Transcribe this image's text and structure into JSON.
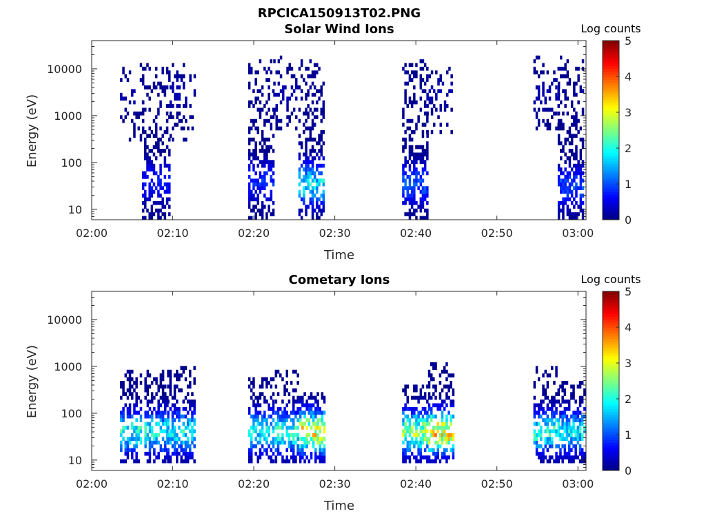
{
  "figure_title": "RPCICA150913T02.PNG",
  "colors": {
    "background": "#ffffff",
    "axis": "#262626",
    "frame": "#262626"
  },
  "chart_data": [
    {
      "type": "heatmap",
      "title": "Solar Wind Ions",
      "xlabel": "Time",
      "ylabel": "Energy (eV)",
      "x_ticks": [
        "02:00",
        "02:10",
        "02:20",
        "02:30",
        "02:40",
        "02:50",
        "03:00"
      ],
      "y_ticks": [
        "10",
        "100",
        "1000",
        "10000"
      ],
      "y_scale": "log",
      "xlim_minutes": [
        0,
        61
      ],
      "ylim_eV": [
        6,
        40000
      ],
      "colorbar": {
        "label": "Log counts",
        "ticks": [
          "0",
          "1",
          "2",
          "3",
          "4",
          "5"
        ],
        "range": [
          0,
          5
        ],
        "colormap": "jet"
      },
      "series": [
        {
          "t_start": 3.5,
          "t_end": 6.2,
          "e_min": 300,
          "e_max": 14000,
          "peak_log_counts": 0.3,
          "core_e": 3000,
          "density": 0.25
        },
        {
          "t_start": 6.2,
          "t_end": 9.6,
          "e_min": 6,
          "e_max": 14000,
          "peak_log_counts": 0.9,
          "core_e": 40,
          "density": 0.55
        },
        {
          "t_start": 9.6,
          "t_end": 12.8,
          "e_min": 300,
          "e_max": 14000,
          "peak_log_counts": 0.3,
          "core_e": 3000,
          "density": 0.25
        },
        {
          "t_start": 19.3,
          "t_end": 22.4,
          "e_min": 6,
          "e_max": 16000,
          "peak_log_counts": 1.0,
          "core_e": 40,
          "density": 0.6
        },
        {
          "t_start": 22.4,
          "t_end": 25.5,
          "e_min": 500,
          "e_max": 18000,
          "peak_log_counts": 0.3,
          "core_e": 3000,
          "density": 0.3
        },
        {
          "t_start": 25.5,
          "t_end": 28.7,
          "e_min": 6,
          "e_max": 16000,
          "peak_log_counts": 2.2,
          "core_e": 35,
          "density": 0.6
        },
        {
          "t_start": 38.3,
          "t_end": 41.3,
          "e_min": 6,
          "e_max": 16000,
          "peak_log_counts": 1.3,
          "core_e": 35,
          "density": 0.6
        },
        {
          "t_start": 41.3,
          "t_end": 44.5,
          "e_min": 300,
          "e_max": 12000,
          "peak_log_counts": 0.3,
          "core_e": 3000,
          "density": 0.25
        },
        {
          "t_start": 54.5,
          "t_end": 57.5,
          "e_min": 500,
          "e_max": 18000,
          "peak_log_counts": 0.3,
          "core_e": 3000,
          "density": 0.3
        },
        {
          "t_start": 57.5,
          "t_end": 60.7,
          "e_min": 6,
          "e_max": 18000,
          "peak_log_counts": 1.2,
          "core_e": 30,
          "density": 0.6
        }
      ]
    },
    {
      "type": "heatmap",
      "title": "Cometary Ions",
      "xlabel": "Time",
      "ylabel": "Energy (eV)",
      "x_ticks": [
        "02:00",
        "02:10",
        "02:20",
        "02:30",
        "02:40",
        "02:50",
        "03:00"
      ],
      "y_ticks": [
        "10",
        "100",
        "1000",
        "10000"
      ],
      "y_scale": "log",
      "xlim_minutes": [
        0,
        61
      ],
      "ylim_eV": [
        6,
        40000
      ],
      "colorbar": {
        "label": "Log counts",
        "ticks": [
          "0",
          "1",
          "2",
          "3",
          "4",
          "5"
        ],
        "range": [
          0,
          5
        ],
        "colormap": "jet"
      },
      "series": [
        {
          "t_start": 3.5,
          "t_end": 6.1,
          "e_min": 8,
          "e_max": 900,
          "peak_log_counts": 2.5,
          "core_e": 40,
          "density": 0.6
        },
        {
          "t_start": 6.5,
          "t_end": 9.3,
          "e_min": 8,
          "e_max": 800,
          "peak_log_counts": 2.4,
          "core_e": 40,
          "density": 0.6
        },
        {
          "t_start": 9.3,
          "t_end": 12.8,
          "e_min": 8,
          "e_max": 1000,
          "peak_log_counts": 2.4,
          "core_e": 40,
          "density": 0.6
        },
        {
          "t_start": 19.3,
          "t_end": 22.4,
          "e_min": 8,
          "e_max": 600,
          "peak_log_counts": 2.3,
          "core_e": 40,
          "density": 0.6
        },
        {
          "t_start": 22.6,
          "t_end": 25.3,
          "e_min": 8,
          "e_max": 900,
          "peak_log_counts": 2.6,
          "core_e": 40,
          "density": 0.6
        },
        {
          "t_start": 25.6,
          "t_end": 28.6,
          "e_min": 8,
          "e_max": 300,
          "peak_log_counts": 3.8,
          "core_e": 40,
          "density": 0.65
        },
        {
          "t_start": 38.3,
          "t_end": 41.5,
          "e_min": 8,
          "e_max": 400,
          "peak_log_counts": 3.2,
          "core_e": 40,
          "density": 0.6
        },
        {
          "t_start": 41.5,
          "t_end": 44.7,
          "e_min": 8,
          "e_max": 1200,
          "peak_log_counts": 4.0,
          "core_e": 40,
          "density": 0.6
        },
        {
          "t_start": 54.5,
          "t_end": 57.7,
          "e_min": 8,
          "e_max": 1000,
          "peak_log_counts": 2.5,
          "core_e": 40,
          "density": 0.6
        },
        {
          "t_start": 57.7,
          "t_end": 60.7,
          "e_min": 8,
          "e_max": 500,
          "peak_log_counts": 2.3,
          "core_e": 40,
          "density": 0.6
        }
      ]
    }
  ]
}
